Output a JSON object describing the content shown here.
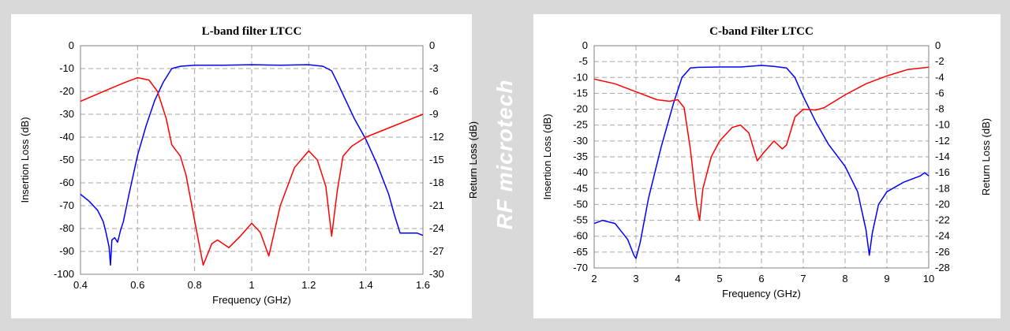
{
  "logo": {
    "text": "RF microtech"
  },
  "chart_data": [
    {
      "type": "line",
      "title": "L-band filter LTCC",
      "xlabel": "Frequency (GHz)",
      "ylabel": "Insertion Loss (dB)",
      "y2label": "Return Loss (dB)",
      "xlim": [
        0.4,
        1.6
      ],
      "ylim": [
        -100,
        0
      ],
      "y2lim": [
        -30,
        0
      ],
      "xticks": [
        0.4,
        0.6,
        0.8,
        1,
        1.2,
        1.4,
        1.6
      ],
      "yticks": [
        0,
        -10,
        -20,
        -30,
        -40,
        -50,
        -60,
        -70,
        -80,
        -90,
        -100
      ],
      "y2ticks": [
        0,
        -3,
        -6,
        -9,
        -12,
        -15,
        -18,
        -21,
        -24,
        -27,
        -30
      ],
      "grid": true,
      "series": [
        {
          "color": "#0000ff",
          "axis": "left",
          "x": [
            0.4,
            0.43,
            0.46,
            0.48,
            0.49,
            0.5,
            0.505,
            0.51,
            0.52,
            0.53,
            0.54,
            0.55,
            0.57,
            0.6,
            0.63,
            0.66,
            0.69,
            0.72,
            0.75,
            0.8,
            0.9,
            1.0,
            1.1,
            1.2,
            1.25,
            1.28,
            1.3,
            1.33,
            1.36,
            1.4,
            1.44,
            1.48,
            1.5,
            1.52,
            1.55,
            1.58,
            1.6
          ],
          "y": [
            -65,
            -68,
            -72,
            -77,
            -82,
            -88,
            -96,
            -85,
            -84,
            -86,
            -81,
            -77,
            -65,
            -48,
            -35,
            -24,
            -16,
            -10,
            -9,
            -8.5,
            -8.5,
            -8.3,
            -8.5,
            -8.3,
            -9,
            -11,
            -16,
            -24,
            -32,
            -41,
            -52,
            -65,
            -74,
            -82,
            -82,
            -82,
            -83
          ]
        },
        {
          "color": "#ff0000",
          "axis": "right",
          "x": [
            0.4,
            0.45,
            0.5,
            0.55,
            0.6,
            0.64,
            0.67,
            0.7,
            0.72,
            0.75,
            0.77,
            0.8,
            0.83,
            0.86,
            0.88,
            0.92,
            0.96,
            1.0,
            1.03,
            1.06,
            1.1,
            1.15,
            1.2,
            1.23,
            1.26,
            1.28,
            1.3,
            1.32,
            1.35,
            1.4,
            1.5,
            1.6
          ],
          "y": [
            -7.3,
            -6.5,
            -5.7,
            -4.9,
            -4.2,
            -4.5,
            -6,
            -9.5,
            -13,
            -14.5,
            -17,
            -23,
            -28.8,
            -26,
            -25.5,
            -26.5,
            -25,
            -23.3,
            -24.5,
            -27.6,
            -21,
            -16,
            -13.8,
            -15,
            -18.5,
            -25,
            -19,
            -14.5,
            -13.2,
            -12,
            -10.5,
            -9
          ]
        }
      ]
    },
    {
      "type": "line",
      "title": "C-band Filter LTCC",
      "xlabel": "Frequency (GHz)",
      "ylabel": "Insertion Loss (dB)",
      "y2label": "Return Loss (dB)",
      "xlim": [
        2,
        10
      ],
      "ylim": [
        -70,
        0
      ],
      "y2lim": [
        -28,
        0
      ],
      "xticks": [
        2,
        3,
        4,
        5,
        6,
        7,
        8,
        9,
        10
      ],
      "yticks": [
        0,
        -5,
        -10,
        -15,
        -20,
        -25,
        -30,
        -35,
        -40,
        -45,
        -50,
        -55,
        -60,
        -65,
        -70
      ],
      "y2ticks": [
        0,
        -2,
        -4,
        -6,
        -8,
        -10,
        -12,
        -14,
        -16,
        -18,
        -20,
        -22,
        -24,
        -26,
        -28
      ],
      "grid": true,
      "series": [
        {
          "color": "#0000ff",
          "axis": "left",
          "x": [
            2,
            2.2,
            2.5,
            2.8,
            2.95,
            3.0,
            3.1,
            3.3,
            3.6,
            3.9,
            4.1,
            4.3,
            4.5,
            5.0,
            5.5,
            6.0,
            6.3,
            6.6,
            6.8,
            7.0,
            7.3,
            7.6,
            8.0,
            8.3,
            8.5,
            8.58,
            8.65,
            8.8,
            9.0,
            9.4,
            9.8,
            9.9,
            10.0
          ],
          "y": [
            -56,
            -55,
            -56,
            -61,
            -66,
            -67,
            -62,
            -48,
            -32,
            -18,
            -10,
            -7,
            -6.8,
            -6.7,
            -6.7,
            -6.2,
            -6.5,
            -7,
            -10,
            -16,
            -24,
            -31,
            -38,
            -46,
            -58,
            -66,
            -59,
            -50,
            -46,
            -43,
            -41,
            -40,
            -41
          ]
        },
        {
          "color": "#ff0000",
          "axis": "right",
          "x": [
            2,
            2.5,
            3.0,
            3.5,
            3.8,
            4.0,
            4.15,
            4.3,
            4.45,
            4.52,
            4.6,
            4.8,
            5.0,
            5.3,
            5.5,
            5.7,
            5.9,
            6.05,
            6.3,
            6.5,
            6.6,
            6.8,
            7.0,
            7.3,
            7.5,
            8.0,
            8.5,
            9.0,
            9.5,
            10.0
          ],
          "y": [
            -4.2,
            -4.8,
            -5.8,
            -6.8,
            -7,
            -6.8,
            -7.8,
            -13,
            -20,
            -22,
            -18,
            -14,
            -12,
            -10.3,
            -10,
            -11,
            -14.5,
            -13.5,
            -12,
            -13,
            -12.5,
            -9,
            -8,
            -8.1,
            -7.8,
            -6.2,
            -4.8,
            -3.8,
            -3,
            -2.7
          ]
        }
      ]
    }
  ]
}
